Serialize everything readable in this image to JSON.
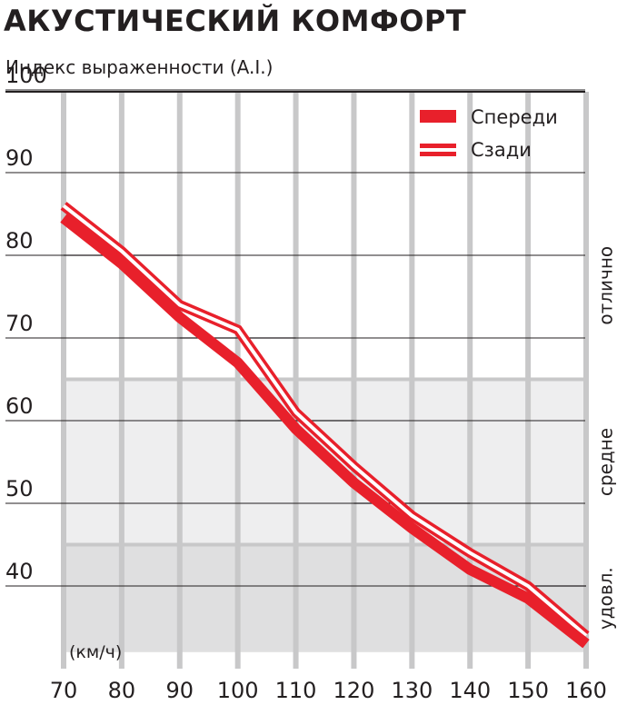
{
  "chart_data": {
    "type": "line",
    "title": "АКУСТИЧЕСКИЙ КОМФОРТ",
    "ylabel": "Индекс выраженности (A.I.)",
    "xlabel": "(км/ч)",
    "x": [
      70,
      80,
      90,
      100,
      110,
      120,
      130,
      140,
      150,
      160
    ],
    "xlim": [
      70,
      160
    ],
    "ylim": [
      32,
      101
    ],
    "x_ticks": [
      "70",
      "80",
      "90",
      "100",
      "110",
      "120",
      "130",
      "140",
      "150",
      "160"
    ],
    "y_ticks": [
      "100",
      "90",
      "80",
      "70",
      "60",
      "50",
      "40"
    ],
    "y_tick_values": [
      100,
      90,
      80,
      70,
      60,
      50,
      40
    ],
    "grid": true,
    "legend": "top-right",
    "series": [
      {
        "name": "Спереди",
        "values": [
          84.5,
          79,
          72.5,
          67,
          59,
          52.5,
          47,
          42,
          38.5,
          33
        ]
      },
      {
        "name": "Сзади",
        "values": [
          86,
          80.5,
          74,
          71,
          61,
          54.5,
          48.5,
          44,
          40,
          34
        ]
      }
    ],
    "zones": [
      {
        "label": "отлично",
        "from": 65,
        "to": 101,
        "color": "#ffffff"
      },
      {
        "label": "средне",
        "from": 45,
        "to": 65,
        "color": "#eeeeef"
      },
      {
        "label": "удовл.",
        "from": 32,
        "to": 45,
        "color": "#dfdfe0"
      }
    ],
    "step_marks": [
      {
        "x_from": 70,
        "x_to": 90,
        "y": 80
      },
      {
        "x_from": 90,
        "x_to": 110,
        "y": 70
      },
      {
        "x_from": 100,
        "x_to": 120,
        "y": 60
      },
      {
        "x_from": 120,
        "x_to": 140,
        "y": 50
      },
      {
        "x_from": 140,
        "x_to": 160,
        "y": 40
      }
    ],
    "colors": {
      "line": "#e8202b",
      "grid_v": "#c8c8c9",
      "grid_h": "#231f20"
    }
  }
}
